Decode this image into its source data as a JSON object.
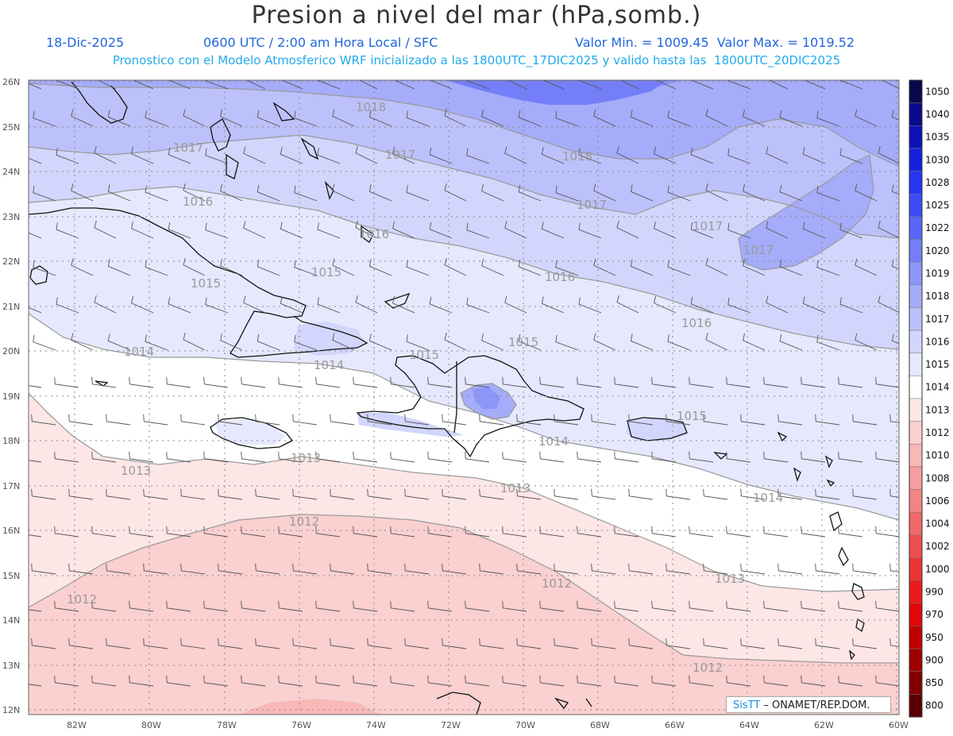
{
  "title": "Presion a nivel del mar (hPa,somb.)",
  "date": "18-Dic-2025",
  "time_label": "0600 UTC / 2:00 am Hora Local / SFC",
  "value_range": "Valor Min. = 1009.45  Valor Max. = 1019.52",
  "model_info": "Pronostico con el Modelo Atmosferico WRF inicializado a las 1800UTC_17DIC2025 y valido hasta las  1800UTC_20DIC2025",
  "lat_labels": [
    "26N",
    "25N",
    "24N",
    "23N",
    "22N",
    "21N",
    "20N",
    "19N",
    "18N",
    "17N",
    "16N",
    "15N",
    "14N",
    "13N",
    "12N"
  ],
  "lon_labels": [
    "82W",
    "80W",
    "78W",
    "76W",
    "74W",
    "72W",
    "70W",
    "68W",
    "66W",
    "64W",
    "62W",
    "60W"
  ],
  "colorbar": [
    {
      "value": "1050",
      "color": "#08084a"
    },
    {
      "value": "1040",
      "color": "#0a0a8a"
    },
    {
      "value": "1035",
      "color": "#0d12b8"
    },
    {
      "value": "1030",
      "color": "#1420dd"
    },
    {
      "value": "1028",
      "color": "#2535f2"
    },
    {
      "value": "1025",
      "color": "#3d4cf6"
    },
    {
      "value": "1022",
      "color": "#5865f7"
    },
    {
      "value": "1020",
      "color": "#737ef8"
    },
    {
      "value": "1019",
      "color": "#8d96f9"
    },
    {
      "value": "1018",
      "color": "#a5acfa"
    },
    {
      "value": "1017",
      "color": "#bcc1fb"
    },
    {
      "value": "1016",
      "color": "#d2d6fc"
    },
    {
      "value": "1015",
      "color": "#e6e8fd"
    },
    {
      "value": "1014",
      "color": "#ffffff"
    },
    {
      "value": "1013",
      "color": "#fde6e6"
    },
    {
      "value": "1012",
      "color": "#fad0d0"
    },
    {
      "value": "1010",
      "color": "#f8b8b8"
    },
    {
      "value": "1008",
      "color": "#f59e9e"
    },
    {
      "value": "1006",
      "color": "#f38484"
    },
    {
      "value": "1004",
      "color": "#f06868"
    },
    {
      "value": "1002",
      "color": "#ee4e4e"
    },
    {
      "value": "1000",
      "color": "#ec3434"
    },
    {
      "value": "990",
      "color": "#ea1a1a"
    },
    {
      "value": "970",
      "color": "#e00808"
    },
    {
      "value": "950",
      "color": "#c00000"
    },
    {
      "value": "900",
      "color": "#a00000"
    },
    {
      "value": "850",
      "color": "#800000"
    },
    {
      "value": "800",
      "color": "#5a0000"
    }
  ],
  "contour_labels": [
    {
      "text": "1018"
    },
    {
      "text": "1017"
    },
    {
      "text": "1017"
    },
    {
      "text": "1018"
    },
    {
      "text": "1016"
    },
    {
      "text": "1017"
    },
    {
      "text": "1017"
    },
    {
      "text": "1017"
    },
    {
      "text": "1016"
    },
    {
      "text": "1015"
    },
    {
      "text": "1015"
    },
    {
      "text": "1016"
    },
    {
      "text": "1016"
    },
    {
      "text": "1014"
    },
    {
      "text": "1014"
    },
    {
      "text": "1015"
    },
    {
      "text": "1015"
    },
    {
      "text": "1015"
    },
    {
      "text": "1014"
    },
    {
      "text": "1013"
    },
    {
      "text": "1013"
    },
    {
      "text": "1013"
    },
    {
      "text": "1014"
    },
    {
      "text": "1012"
    },
    {
      "text": "1012"
    },
    {
      "text": "1012"
    },
    {
      "text": "1013"
    },
    {
      "text": "1012"
    }
  ],
  "credit": {
    "brand": "SisTT",
    "org": " – ONAMET/REP.DOM."
  }
}
